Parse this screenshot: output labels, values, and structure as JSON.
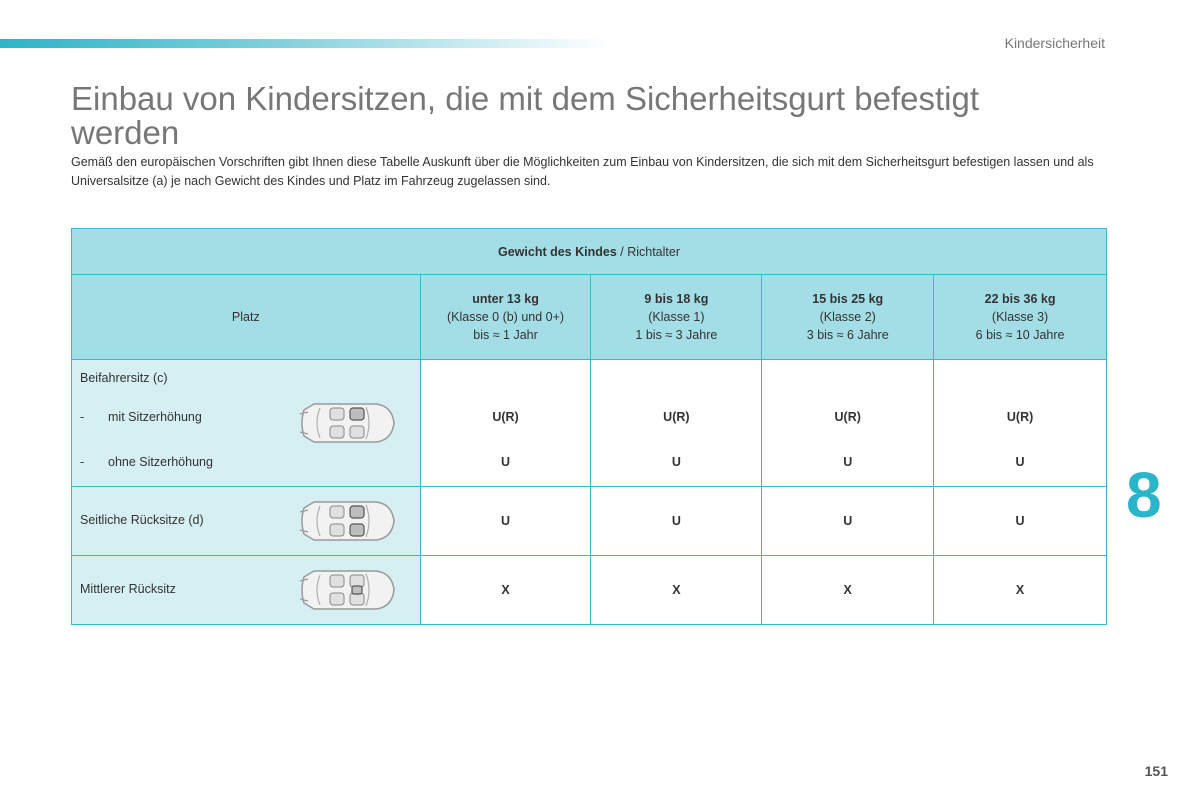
{
  "header": {
    "section": "Kindersicherheit"
  },
  "title": "Einbau von Kindersitzen, die mit dem Sicherheitsgurt befestigt werden",
  "intro": "Gemäß den europäischen Vorschriften gibt Ihnen diese Tabelle Auskunft über die Möglichkeiten zum Einbau von Kindersitzen, die sich mit dem Sicherheitsgurt befestigen lassen und als Universalsitze (a) je nach Gewicht des Kindes und Platz im Fahrzeug zugelassen sind.",
  "table": {
    "header_bold": "Gewicht des Kindes",
    "header_rest": " / Richtalter",
    "place_header": "Platz",
    "classes": [
      {
        "weight": "unter 13 kg",
        "class": "(Klasse 0 (b) und 0+)",
        "age": "bis ≈ 1 Jahr"
      },
      {
        "weight": "9 bis 18 kg",
        "class": "(Klasse 1)",
        "age": "1 bis ≈ 3 Jahre"
      },
      {
        "weight": "15 bis 25 kg",
        "class": "(Klasse 2)",
        "age": "3 bis ≈ 6 Jahre"
      },
      {
        "weight": "22 bis 36 kg",
        "class": "(Klasse 3)",
        "age": "6 bis ≈ 10 Jahre"
      }
    ],
    "rows": {
      "front": {
        "label": "Beifahrersitz (c)",
        "sub1_dash": "-",
        "sub1_label": "mit Sitzerhöhung",
        "sub2_dash": "-",
        "sub2_label": "ohne Sitzerhöhung",
        "values_with": [
          "U(R)",
          "U(R)",
          "U(R)",
          "U(R)"
        ],
        "values_without": [
          "U",
          "U",
          "U",
          "U"
        ]
      },
      "rear_side": {
        "label": "Seitliche Rücksitze (d)",
        "values": [
          "U",
          "U",
          "U",
          "U"
        ]
      },
      "rear_middle": {
        "label": "Mittlerer Rücksitz",
        "values": [
          "X",
          "X",
          "X",
          "X"
        ]
      }
    }
  },
  "chapter": "8",
  "page_number": "151",
  "colors": {
    "accent": "#2bb5c9",
    "header_bg": "#a3dee6",
    "place_bg": "#d5eff3"
  },
  "icons": [
    "car-front-passenger-icon",
    "car-rear-side-icon",
    "car-rear-middle-icon"
  ]
}
